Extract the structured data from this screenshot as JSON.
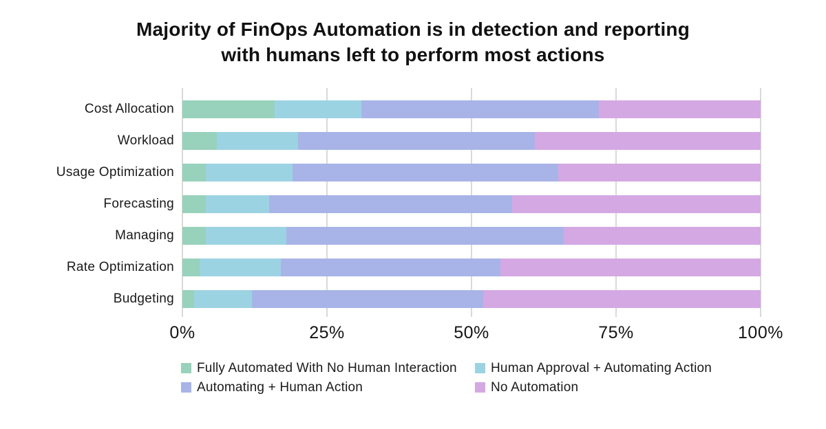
{
  "title": {
    "line1": "Majority of FinOps Automation is in detection and reporting",
    "line2": "with humans left to perform most actions"
  },
  "chart_data": {
    "type": "bar",
    "orientation": "horizontal",
    "stacked": true,
    "title": "Majority of FinOps Automation is in detection and reporting with humans left to perform most actions",
    "categories": [
      "Cost Allocation",
      "Workload",
      "Usage Optimization",
      "Forecasting",
      "Managing",
      "Rate Optimization",
      "Budgeting"
    ],
    "series": [
      {
        "name": "Fully Automated With No Human Interaction",
        "color": "#98d1bc",
        "values": [
          16,
          6,
          4,
          4,
          4,
          3,
          2
        ]
      },
      {
        "name": "Human Approval + Automating Action",
        "color": "#9cd3e3",
        "values": [
          15,
          14,
          15,
          11,
          14,
          14,
          10
        ]
      },
      {
        "name": "Automating + Human Action",
        "color": "#a8b4e7",
        "values": [
          41,
          41,
          46,
          42,
          48,
          38,
          40
        ]
      },
      {
        "name": "No Automation",
        "color": "#d4a8e3",
        "values": [
          28,
          39,
          35,
          43,
          34,
          45,
          48
        ]
      }
    ],
    "x_ticks": [
      "0%",
      "25%",
      "50%",
      "75%",
      "100%"
    ],
    "x_tick_values": [
      0,
      25,
      50,
      75,
      100
    ],
    "xlim": [
      0,
      100
    ],
    "xlabel": "",
    "ylabel": "",
    "grid": true,
    "legend_position": "bottom"
  },
  "colors": {
    "gridline": "#d9d9d9",
    "text": "#1a1a1a",
    "background": "#ffffff"
  }
}
